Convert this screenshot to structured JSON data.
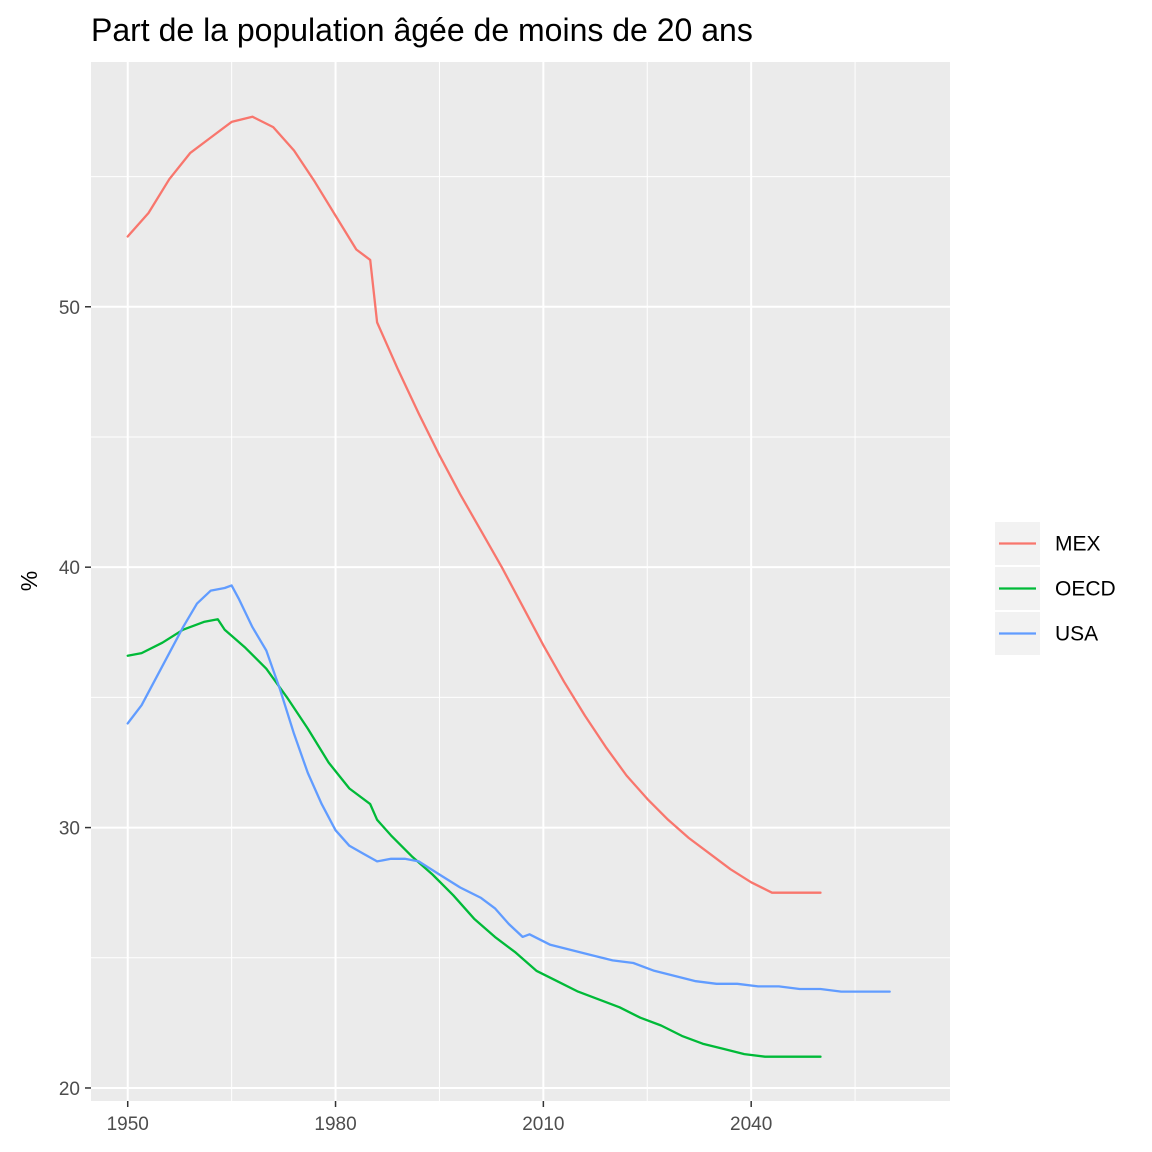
{
  "chart_data": {
    "type": "line",
    "title": "Part de la population âgée de moins de 20 ans",
    "xlabel": "",
    "ylabel": "%",
    "xlim": [
      1944.7,
      2068.7
    ],
    "ylim": [
      19.5,
      59.4
    ],
    "x_ticks": [
      "1950",
      "1980",
      "2010",
      "2040"
    ],
    "y_ticks": [
      "20",
      "30",
      "40",
      "50"
    ],
    "grid": true,
    "legend_position": "right",
    "series": [
      {
        "name": "MEX",
        "color": "#F8766D",
        "points": [
          [
            1950,
            52.7
          ],
          [
            1953,
            53.6
          ],
          [
            1956,
            54.9
          ],
          [
            1959,
            55.9
          ],
          [
            1962,
            56.5
          ],
          [
            1965,
            57.1
          ],
          [
            1968,
            57.3
          ],
          [
            1971,
            56.9
          ],
          [
            1974,
            56.0
          ],
          [
            1977,
            54.8
          ],
          [
            1980,
            53.5
          ],
          [
            1983,
            52.2
          ],
          [
            1985,
            51.8
          ],
          [
            1986,
            49.4
          ],
          [
            1989,
            47.6
          ],
          [
            1992,
            45.9
          ],
          [
            1995,
            44.3
          ],
          [
            1998,
            42.8
          ],
          [
            2001,
            41.4
          ],
          [
            2004,
            40.0
          ],
          [
            2007,
            38.5
          ],
          [
            2010,
            37.0
          ],
          [
            2013,
            35.6
          ],
          [
            2016,
            34.3
          ],
          [
            2019,
            33.1
          ],
          [
            2022,
            32.0
          ],
          [
            2025,
            31.1
          ],
          [
            2028,
            30.3
          ],
          [
            2031,
            29.6
          ],
          [
            2034,
            29.0
          ],
          [
            2037,
            28.4
          ],
          [
            2040,
            27.9
          ],
          [
            2043,
            27.5
          ],
          [
            2050,
            27.5
          ]
        ]
      },
      {
        "name": "OECD",
        "color": "#00BA38",
        "points": [
          [
            1950,
            36.6
          ],
          [
            1952,
            36.7
          ],
          [
            1955,
            37.1
          ],
          [
            1958,
            37.6
          ],
          [
            1961,
            37.9
          ],
          [
            1963,
            38.0
          ],
          [
            1964,
            37.6
          ],
          [
            1967,
            36.9
          ],
          [
            1970,
            36.1
          ],
          [
            1973,
            35.0
          ],
          [
            1976,
            33.8
          ],
          [
            1979,
            32.5
          ],
          [
            1982,
            31.5
          ],
          [
            1985,
            30.9
          ],
          [
            1986,
            30.3
          ],
          [
            1988,
            29.7
          ],
          [
            1991,
            28.9
          ],
          [
            1994,
            28.2
          ],
          [
            1997,
            27.4
          ],
          [
            2000,
            26.5
          ],
          [
            2003,
            25.8
          ],
          [
            2006,
            25.2
          ],
          [
            2009,
            24.5
          ],
          [
            2012,
            24.1
          ],
          [
            2015,
            23.7
          ],
          [
            2018,
            23.4
          ],
          [
            2021,
            23.1
          ],
          [
            2024,
            22.7
          ],
          [
            2027,
            22.4
          ],
          [
            2030,
            22.0
          ],
          [
            2033,
            21.7
          ],
          [
            2036,
            21.5
          ],
          [
            2039,
            21.3
          ],
          [
            2042,
            21.2
          ],
          [
            2050,
            21.2
          ]
        ]
      },
      {
        "name": "USA",
        "color": "#619CFF",
        "points": [
          [
            1950,
            34.0
          ],
          [
            1952,
            34.7
          ],
          [
            1955,
            36.2
          ],
          [
            1958,
            37.7
          ],
          [
            1960,
            38.6
          ],
          [
            1962,
            39.1
          ],
          [
            1964,
            39.2
          ],
          [
            1965,
            39.3
          ],
          [
            1966,
            38.8
          ],
          [
            1968,
            37.7
          ],
          [
            1970,
            36.8
          ],
          [
            1972,
            35.3
          ],
          [
            1974,
            33.6
          ],
          [
            1976,
            32.1
          ],
          [
            1978,
            30.9
          ],
          [
            1980,
            29.9
          ],
          [
            1982,
            29.3
          ],
          [
            1984,
            29.0
          ],
          [
            1986,
            28.7
          ],
          [
            1988,
            28.8
          ],
          [
            1990,
            28.8
          ],
          [
            1992,
            28.7
          ],
          [
            1995,
            28.2
          ],
          [
            1998,
            27.7
          ],
          [
            2001,
            27.3
          ],
          [
            2003,
            26.9
          ],
          [
            2005,
            26.3
          ],
          [
            2007,
            25.8
          ],
          [
            2008,
            25.9
          ],
          [
            2011,
            25.5
          ],
          [
            2014,
            25.3
          ],
          [
            2017,
            25.1
          ],
          [
            2020,
            24.9
          ],
          [
            2023,
            24.8
          ],
          [
            2026,
            24.5
          ],
          [
            2029,
            24.3
          ],
          [
            2032,
            24.1
          ],
          [
            2035,
            24.0
          ],
          [
            2038,
            24.0
          ],
          [
            2041,
            23.9
          ],
          [
            2044,
            23.9
          ],
          [
            2047,
            23.8
          ],
          [
            2050,
            23.8
          ],
          [
            2053,
            23.7
          ],
          [
            2060,
            23.7
          ]
        ]
      }
    ]
  }
}
